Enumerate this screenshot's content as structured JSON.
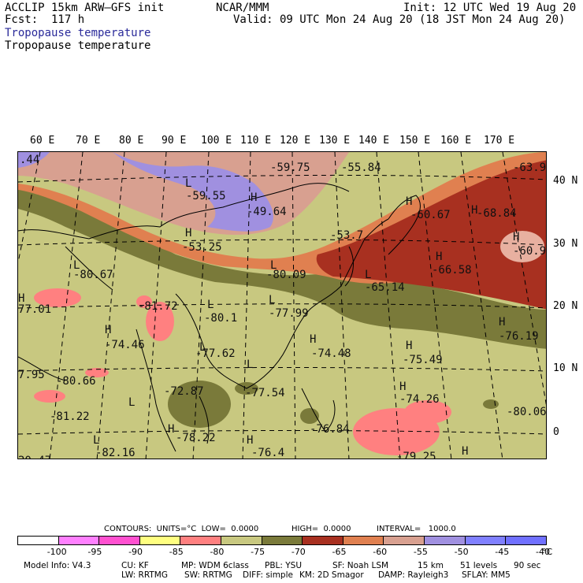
{
  "header": {
    "model": "ACCLIP 15km ARW–GFS init",
    "forecast": "Fcst:  117 h",
    "field_blue": "Tropopause temperature",
    "field_black": "Tropopause temperature",
    "org": "NCAR/MMM",
    "init": "Init: 12 UTC Wed 19 Aug 20",
    "valid": "Valid: 09 UTC Mon 24 Aug 20 (18 JST Mon 24 Aug 20)"
  },
  "lon_labels": [
    "60 E",
    "70 E",
    "80 E",
    "90 E",
    "100 E",
    "110 E",
    "120 E",
    "130 E",
    "140 E",
    "150 E",
    "160 E",
    "170 E"
  ],
  "lat_labels": [
    "40 N",
    "30 N",
    "20 N",
    "10 N",
    "0"
  ],
  "contour_labels": [
    {
      "t": ".44"
    },
    {
      "t": "-59.75"
    },
    {
      "t": "-55.84"
    },
    {
      "t": "-63.9"
    },
    {
      "t": "L"
    },
    {
      "t": "-59.55"
    },
    {
      "t": "H"
    },
    {
      "t": "-49.64"
    },
    {
      "t": "H"
    },
    {
      "t": "-60.67"
    },
    {
      "t": "H"
    },
    {
      "t": "-68.84"
    },
    {
      "t": "H"
    },
    {
      "t": "-53.25"
    },
    {
      "t": "-53.7"
    },
    {
      "t": "H"
    },
    {
      "t": "-60.9"
    },
    {
      "t": "L"
    },
    {
      "t": "-80.67"
    },
    {
      "t": "L"
    },
    {
      "t": "-80.09"
    },
    {
      "t": "H"
    },
    {
      "t": "-66.58"
    },
    {
      "t": "L"
    },
    {
      "t": "-65.14"
    },
    {
      "t": "H"
    },
    {
      "t": "77.01"
    },
    {
      "t": "-81.72"
    },
    {
      "t": "L"
    },
    {
      "t": "-80.1"
    },
    {
      "t": "L"
    },
    {
      "t": "-77.99"
    },
    {
      "t": "H"
    },
    {
      "t": "-76.19"
    },
    {
      "t": "H"
    },
    {
      "t": "-74.46"
    },
    {
      "t": "L"
    },
    {
      "t": "-77.62"
    },
    {
      "t": "H"
    },
    {
      "t": "-74.48"
    },
    {
      "t": "H"
    },
    {
      "t": "-75.49"
    },
    {
      "t": "7.95"
    },
    {
      "t": "-80.66"
    },
    {
      "t": "L"
    },
    {
      "t": "-77.54"
    },
    {
      "t": "H"
    },
    {
      "t": "-74.26"
    },
    {
      "t": "-72.87"
    },
    {
      "t": "-81.22"
    },
    {
      "t": "L"
    },
    {
      "t": "-80.06"
    },
    {
      "t": "-76.84"
    },
    {
      "t": "H"
    },
    {
      "t": "-78.22"
    },
    {
      "t": "H"
    },
    {
      "t": "L"
    },
    {
      "t": "-82.16"
    },
    {
      "t": "-76.4"
    },
    {
      "t": "-79.25"
    },
    {
      "t": "H"
    },
    {
      "t": "20.47"
    }
  ],
  "contour_info": {
    "contours": "CONTOURS:  UNITS=°C  LOW=  0.0000",
    "high": "HIGH=  0.0000",
    "interval": "INTERVAL=   1000.0"
  },
  "colorbar": {
    "colors": [
      "#ffffff",
      "#ff80ff",
      "#ff50d0",
      "#ffff80",
      "#ff8080",
      "#c8c880",
      "#7a7a3a",
      "#a83020",
      "#e08050",
      "#d8a090",
      "#a090e0",
      "#8080ff",
      "#7070ff"
    ],
    "ticks": [
      "-100",
      "-95",
      "-90",
      "-85",
      "-80",
      "-75",
      "-70",
      "-65",
      "-60",
      "-55",
      "-50",
      "-45",
      "-40"
    ],
    "unit": "°C"
  },
  "footer": {
    "line1": [
      "Model Info: V4.3",
      "CU: KF",
      "MP: WDM 6class",
      "PBL: YSU",
      "SF: Noah LSM",
      "15 km",
      "51 levels",
      "90 sec"
    ],
    "line2": [
      "LW: RRTMG",
      "SW: RRTMG",
      "DIFF: simple",
      "KM: 2D Smagor",
      "DAMP: Rayleigh3",
      "SFLAY: MM5"
    ]
  }
}
